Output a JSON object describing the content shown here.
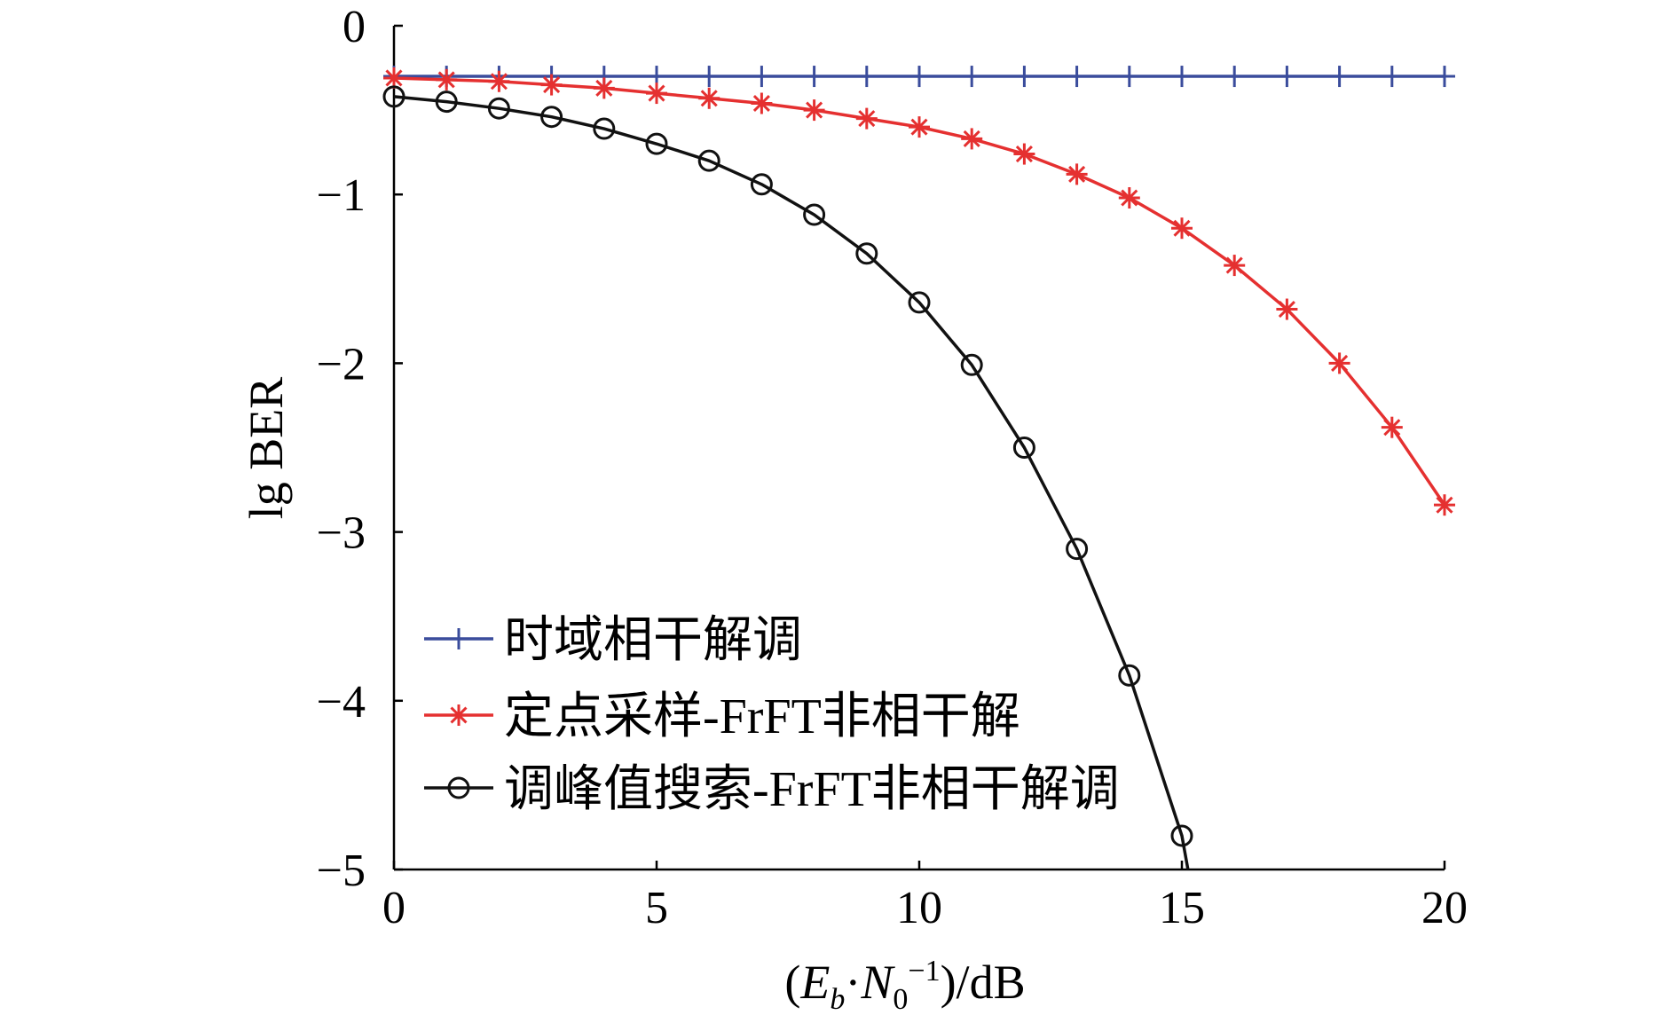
{
  "chart_data": {
    "type": "line",
    "title": "",
    "xlabel": "(Eb·N0^-1)/dB",
    "xlabel_parts": {
      "open": "(",
      "e": "E",
      "e_sub": "b",
      "dot": "·",
      "n": "N",
      "n_sub": "0",
      "n_sup": "−1",
      "close": ")/dB"
    },
    "ylabel": "lg BER",
    "xlim": [
      0,
      20
    ],
    "ylim": [
      -5,
      0
    ],
    "xticks": [
      0,
      5,
      10,
      15,
      20
    ],
    "xtick_labels": [
      "0",
      "5",
      "10",
      "15",
      "20"
    ],
    "yticks": [
      0,
      -1,
      -2,
      -3,
      -4,
      -5
    ],
    "ytick_labels": [
      "0",
      "−1",
      "−2",
      "−3",
      "−4",
      "−5"
    ],
    "grid": false,
    "legend_position": "bottom-left",
    "series": [
      {
        "name": "时域相干解调",
        "color": "#3a4c9c",
        "marker": "plus",
        "x": [
          0,
          1,
          2,
          3,
          4,
          5,
          6,
          7,
          8,
          9,
          10,
          11,
          12,
          13,
          14,
          15,
          16,
          17,
          18,
          19,
          20
        ],
        "y": [
          -0.3,
          -0.3,
          -0.3,
          -0.3,
          -0.3,
          -0.3,
          -0.3,
          -0.3,
          -0.3,
          -0.3,
          -0.3,
          -0.3,
          -0.3,
          -0.3,
          -0.3,
          -0.3,
          -0.3,
          -0.3,
          -0.3,
          -0.3,
          -0.3
        ]
      },
      {
        "name": "定点采样-FrFT非相干解",
        "color": "#e53030",
        "marker": "asterisk",
        "x": [
          0,
          1,
          2,
          3,
          4,
          5,
          6,
          7,
          8,
          9,
          10,
          11,
          12,
          13,
          14,
          15,
          16,
          17,
          18,
          19,
          20
        ],
        "y": [
          -0.31,
          -0.32,
          -0.33,
          -0.35,
          -0.37,
          -0.4,
          -0.43,
          -0.46,
          -0.5,
          -0.55,
          -0.6,
          -0.67,
          -0.76,
          -0.88,
          -1.02,
          -1.2,
          -1.42,
          -1.68,
          -2.0,
          -2.38,
          -2.84
        ]
      },
      {
        "name": "调峰值搜索-FrFT非相干解调",
        "color": "#111111",
        "marker": "circle",
        "x": [
          0,
          1,
          2,
          3,
          4,
          5,
          6,
          7,
          8,
          9,
          10,
          11,
          12,
          13,
          14,
          15
        ],
        "y": [
          -0.42,
          -0.45,
          -0.49,
          -0.54,
          -0.61,
          -0.7,
          -0.8,
          -0.94,
          -1.12,
          -1.35,
          -1.64,
          -2.01,
          -2.5,
          -3.1,
          -3.85,
          -4.8
        ]
      }
    ]
  }
}
